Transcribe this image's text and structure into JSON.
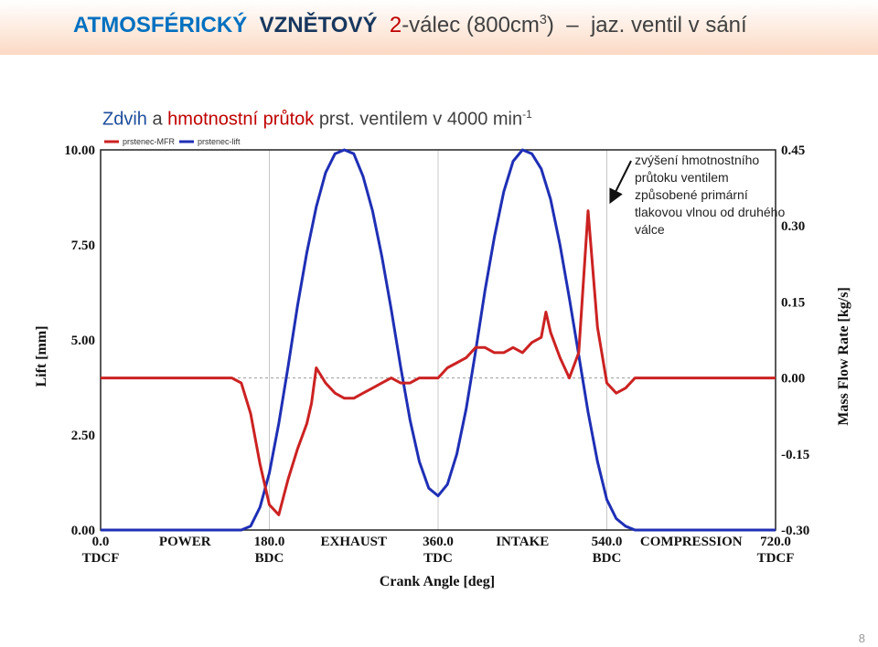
{
  "slide": {
    "title": {
      "part1": "ATMOSFÉRICKÝ",
      "part2": "VZNĚTOVÝ",
      "part3": "2",
      "part4": "-válec (800cm",
      "part4_sup": "3",
      "part5": ")",
      "part6": "jaz. ventil v sání"
    },
    "subtitle": {
      "part1": "Zdvih",
      "part2": "a",
      "part3": "hmotnostní průtok",
      "part4": "prst. ventilem v 4000 min",
      "part4_sup": "-1"
    },
    "annotation": "zvýšení hmotnostního průtoku ventilem způsobené primární tlakovou vlnou od druhého válce",
    "page_number": "8",
    "colors": {
      "lift": "#1f2fb5",
      "mfr": "#cc2222",
      "accent": "#0070c0"
    }
  },
  "chart_data": {
    "type": "line",
    "xlabel": "Crank Angle [deg]",
    "ylabel_left": "Lift [mm]",
    "ylabel_right": "Mass Flow Rate [kg/s]",
    "xlim": [
      0,
      720
    ],
    "ylim_left": [
      0,
      10
    ],
    "ylim_right": [
      -0.3,
      0.45
    ],
    "x_ticks": [
      {
        "value": "0.0",
        "label": "TDCF"
      },
      {
        "value": "180.0",
        "label": "BDC"
      },
      {
        "value": "360.0",
        "label": "TDC"
      },
      {
        "value": "540.0",
        "label": "BDC"
      },
      {
        "value": "720.0",
        "label": "TDCF"
      }
    ],
    "phase_labels": [
      "POWER",
      "EXHAUST",
      "INTAKE",
      "COMPRESSION"
    ],
    "y_ticks_left": [
      "10.00",
      "7.50",
      "5.00",
      "2.50",
      "0.00"
    ],
    "y_ticks_right": [
      "0.45",
      "0.30",
      "0.15",
      "0.00",
      "-0.15",
      "-0.30"
    ],
    "legend": [
      "prstenec-MFR",
      "prstenec-lift"
    ],
    "series": [
      {
        "name": "prstenec-lift",
        "axis": "left",
        "x": [
          0,
          150,
          160,
          170,
          180,
          190,
          200,
          210,
          220,
          230,
          240,
          250,
          260,
          270,
          280,
          290,
          300,
          310,
          320,
          330,
          340,
          350,
          360,
          370,
          380,
          390,
          400,
          410,
          420,
          430,
          440,
          450,
          460,
          470,
          480,
          490,
          500,
          510,
          520,
          530,
          540,
          550,
          560,
          570,
          720
        ],
        "y": [
          0,
          0,
          0.1,
          0.6,
          1.5,
          2.8,
          4.3,
          5.9,
          7.3,
          8.5,
          9.4,
          9.9,
          10.0,
          9.9,
          9.3,
          8.4,
          7.2,
          5.8,
          4.3,
          2.9,
          1.8,
          1.1,
          0.9,
          1.2,
          2.0,
          3.2,
          4.7,
          6.3,
          7.7,
          8.9,
          9.7,
          10.0,
          9.9,
          9.5,
          8.7,
          7.5,
          6.1,
          4.6,
          3.1,
          1.8,
          0.8,
          0.3,
          0.1,
          0,
          0
        ]
      },
      {
        "name": "prstenec-MFR",
        "axis": "right",
        "x": [
          0,
          140,
          150,
          160,
          170,
          180,
          190,
          200,
          210,
          220,
          225,
          230,
          240,
          250,
          260,
          270,
          280,
          290,
          300,
          310,
          320,
          330,
          340,
          350,
          360,
          370,
          380,
          390,
          400,
          410,
          420,
          430,
          440,
          450,
          460,
          470,
          475,
          480,
          490,
          500,
          510,
          520,
          530,
          540,
          550,
          560,
          570,
          580,
          590,
          600,
          720
        ],
        "y": [
          0.0,
          0.0,
          -0.01,
          -0.07,
          -0.17,
          -0.25,
          -0.27,
          -0.2,
          -0.14,
          -0.09,
          -0.05,
          0.02,
          -0.01,
          -0.03,
          -0.04,
          -0.04,
          -0.03,
          -0.02,
          -0.01,
          0.0,
          -0.01,
          -0.01,
          0.0,
          0.0,
          0.0,
          0.02,
          0.03,
          0.04,
          0.06,
          0.06,
          0.05,
          0.05,
          0.06,
          0.05,
          0.07,
          0.08,
          0.13,
          0.09,
          0.04,
          0.0,
          0.05,
          0.33,
          0.1,
          -0.01,
          -0.03,
          -0.02,
          0.0,
          0.0,
          0.0,
          0.0,
          0.0
        ]
      }
    ]
  }
}
